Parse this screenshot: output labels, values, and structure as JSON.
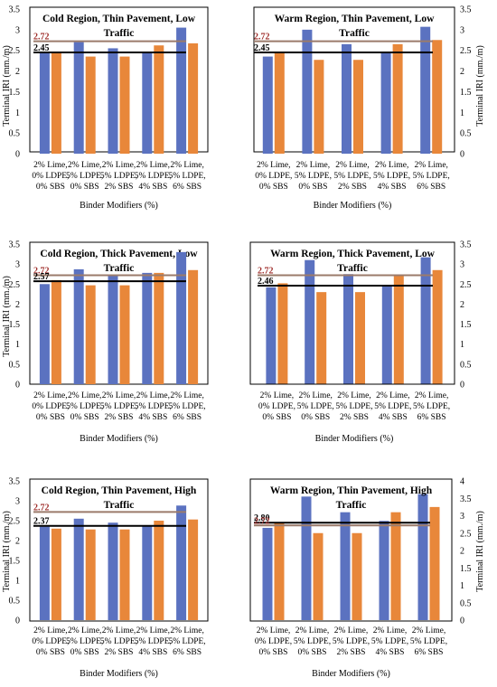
{
  "figure": {
    "accent_colors": {
      "bar_a": "#5b72c0",
      "bar_b": "#e8873a",
      "ref_line": "#9b7b6b",
      "mean_line": "#000000"
    }
  },
  "chart_data": [
    {
      "type": "bar",
      "title": "Cold Region, Thin Pavement, Low Traffic",
      "ylabel": "Terminal IRI (mm./m)",
      "xlabel": "Binder Modifiers (%)",
      "ylim": [
        0,
        3.5
      ],
      "yticks": [
        "0",
        "0.5",
        "1",
        "1.5",
        "2",
        "2.5",
        "3",
        "3.5"
      ],
      "axis_side": "left",
      "categories": [
        [
          "2% Lime,",
          "0% LDPE,",
          "0% SBS"
        ],
        [
          "2% Lime,",
          "5% LDPE,",
          "0% SBS"
        ],
        [
          "2% Lime,",
          "5% LDPE,",
          "2% SBS"
        ],
        [
          "2% Lime,",
          "5% LDPE,",
          "4% SBS"
        ],
        [
          "2% Lime,",
          "5% LDPE,",
          "6% SBS"
        ]
      ],
      "series": [
        {
          "values": [
            2.44,
            2.7,
            2.55,
            2.45,
            3.05
          ]
        },
        {
          "values": [
            2.44,
            2.35,
            2.35,
            2.62,
            2.67
          ]
        }
      ],
      "reference_lines": [
        {
          "value": 2.72,
          "label": "2.72"
        },
        {
          "value": 2.45,
          "label": "2.45"
        }
      ]
    },
    {
      "type": "bar",
      "title": "Warm Region, Thin Pavement, Low Traffic",
      "ylabel": "Terminal IRI (mm./m)",
      "xlabel": "Binder Modifiers (%)",
      "ylim": [
        0,
        3.5
      ],
      "yticks": [
        "0",
        "0.5",
        "1",
        "1.5",
        "2",
        "2.5",
        "3",
        "3.5"
      ],
      "axis_side": "right",
      "categories": [
        [
          "2% Lime,",
          "0% LDPE,",
          "0% SBS"
        ],
        [
          "2% Lime,",
          "5% LDPE,",
          "0% SBS"
        ],
        [
          "2% Lime,",
          "5% LDPE,",
          "2% SBS"
        ],
        [
          "2% Lime,",
          "5% LDPE,",
          "4% SBS"
        ],
        [
          "2% Lime,",
          "5% LDPE,",
          "6% SBS"
        ]
      ],
      "series": [
        {
          "values": [
            2.42,
            3.1,
            2.75,
            2.48,
            3.17
          ]
        },
        {
          "values": [
            2.52,
            2.3,
            2.3,
            2.72,
            2.85
          ]
        }
      ],
      "reference_lines": [
        {
          "value": 2.72,
          "label": "2.72"
        },
        {
          "value": 2.46,
          "label": "2.46"
        }
      ]
    },
    {
      "type": "bar",
      "title": "Cold Region, Thick Pavement, Low Traffic",
      "ylabel": "Terminal IRI (mm./m)",
      "xlabel": "Binder Modifiers (%)",
      "ylim": [
        0,
        3.5
      ],
      "yticks": [
        "0",
        "0.5",
        "1",
        "1.5",
        "2",
        "2.5",
        "3",
        "3.5"
      ],
      "axis_side": "left",
      "categories": [
        [
          "2% Lime,",
          "0% LDPE,",
          "0% SBS"
        ],
        [
          "2% Lime,",
          "5% LDPE,",
          "0% SBS"
        ],
        [
          "2% Lime,",
          "5% LDPE,",
          "2% SBS"
        ],
        [
          "2% Lime,",
          "5% LDPE,",
          "4% SBS"
        ],
        [
          "2% Lime,",
          "5% LDPE,",
          "6% SBS"
        ]
      ],
      "series": [
        {
          "values": [
            2.35,
            2.55,
            2.45,
            2.38,
            2.88
          ]
        },
        {
          "values": [
            2.3,
            2.28,
            2.28,
            2.5,
            2.53
          ]
        }
      ],
      "reference_lines": [
        {
          "value": 2.72,
          "label": "2.72"
        },
        {
          "value": 2.37,
          "label": "2.37"
        }
      ]
    },
    {
      "type": "bar",
      "title": "Warm Region, Thick Pavement, Low Traffic",
      "ylabel": "",
      "xlabel": "Binder Modifiers (%)",
      "ylim": [
        0,
        3.5
      ],
      "yticks": [
        "0",
        "0.5",
        "1",
        "1.5",
        "2",
        "2.5",
        "3",
        "3.5"
      ],
      "axis_side": "right",
      "categories": [
        [
          "2% Lime,",
          "0% LDPE,",
          "0% SBS"
        ],
        [
          "2% Lime,",
          "5% LDPE,",
          "0% SBS"
        ],
        [
          "2% Lime,",
          "5% LDPE,",
          "2% SBS"
        ],
        [
          "2% Lime,",
          "5% LDPE,",
          "4% SBS"
        ],
        [
          "2% Lime,",
          "5% LDPE,",
          "6% SBS"
        ]
      ],
      "series": [
        {
          "values": [
            2.35,
            3.0,
            2.65,
            2.45,
            3.07
          ]
        },
        {
          "values": [
            2.45,
            2.27,
            2.27,
            2.65,
            2.75
          ]
        }
      ],
      "reference_lines": [
        {
          "value": 2.72,
          "label": "2.72"
        },
        {
          "value": 2.45,
          "label": "2.45"
        }
      ]
    },
    {
      "type": "bar",
      "title": "Cold Region, Thin Pavement, High Traffic",
      "ylabel": "Terminal IRI (mm./m)",
      "xlabel": "Binder Modifiers (%)",
      "ylim": [
        0,
        3.5
      ],
      "yticks": [
        "0",
        "0.5",
        "1",
        "1.5",
        "2",
        "2.5",
        "3",
        "3.5"
      ],
      "axis_side": "left",
      "categories": [
        [
          "2% Lime,",
          "0% LDPE,",
          "0% SBS"
        ],
        [
          "2% Lime,",
          "5% LDPE,",
          "0% SBS"
        ],
        [
          "2% Lime,",
          "5% LDPE,",
          "2% SBS"
        ],
        [
          "2% Lime,",
          "5% LDPE,",
          "4% SBS"
        ],
        [
          "2% Lime,",
          "5% LDPE,",
          "6% SBS"
        ]
      ],
      "series": [
        {
          "values": [
            2.5,
            2.87,
            2.72,
            2.78,
            3.3
          ]
        },
        {
          "values": [
            2.6,
            2.47,
            2.47,
            2.78,
            2.85
          ]
        }
      ],
      "reference_lines": [
        {
          "value": 2.72,
          "label": "2.72"
        },
        {
          "value": 2.57,
          "label": "2.57"
        }
      ]
    },
    {
      "type": "bar",
      "title": "Warm Region, Thin Pavement, High Traffic",
      "ylabel": "Terminal IRI (mm./m)",
      "xlabel": "Binder Modifiers (%)",
      "ylim": [
        0,
        4
      ],
      "yticks": [
        "0",
        "0.5",
        "1",
        "1.5",
        "2",
        "2.5",
        "3",
        "3.5",
        "4"
      ],
      "axis_side": "right",
      "categories": [
        [
          "2% Lime,",
          "0% LDPE,",
          "0% SBS"
        ],
        [
          "2% Lime,",
          "5% LDPE,",
          "0% SBS"
        ],
        [
          "2% Lime,",
          "5% LDPE,",
          "2% SBS"
        ],
        [
          "2% Lime,",
          "5% LDPE,",
          "4% SBS"
        ],
        [
          "2% Lime,",
          "5% LDPE,",
          "6% SBS"
        ]
      ],
      "series": [
        {
          "values": [
            2.65,
            3.55,
            3.1,
            2.85,
            3.62
          ]
        },
        {
          "values": [
            2.8,
            2.5,
            2.5,
            3.1,
            3.25
          ]
        }
      ],
      "reference_lines": [
        {
          "value": 2.8,
          "label": "2.80"
        },
        {
          "value": 2.72,
          "label": "2.72"
        }
      ]
    }
  ]
}
